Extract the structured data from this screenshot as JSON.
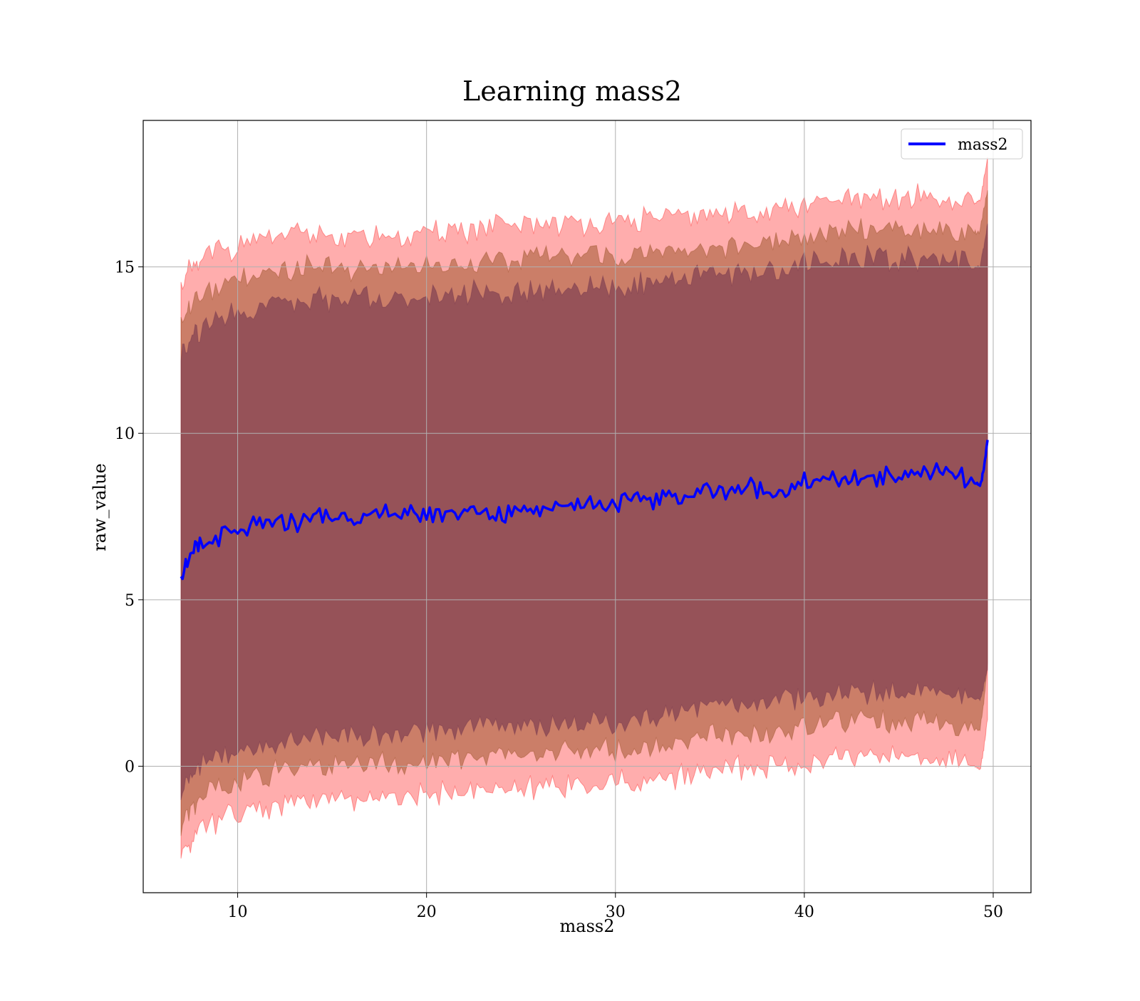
{
  "chart_data": {
    "type": "line",
    "title": "Learning mass2",
    "xlabel": "mass2",
    "ylabel": "raw_value",
    "xlim": [
      5,
      52
    ],
    "ylim": [
      -3.8,
      19.4
    ],
    "xticks": [
      10,
      20,
      30,
      40,
      50
    ],
    "yticks": [
      0,
      5,
      10,
      15
    ],
    "grid": true,
    "legend_position": "top-right",
    "colors": {
      "line": "#0000ff",
      "band_outer": "#ff0000",
      "band_middle": "#8b4513",
      "band_inner": "#6b2e4a"
    },
    "series": [
      {
        "name": "mass2",
        "x": [
          7.0,
          7.5,
          8.0,
          9.0,
          10.0,
          11.0,
          12.0,
          13.0,
          14.0,
          15.0,
          16.0,
          17.0,
          18.0,
          19.0,
          20.0,
          21.0,
          22.0,
          23.0,
          24.0,
          25.0,
          26.0,
          27.0,
          28.0,
          29.0,
          30.0,
          31.0,
          32.0,
          33.0,
          34.0,
          35.0,
          36.0,
          37.0,
          38.0,
          39.0,
          40.0,
          41.0,
          42.0,
          43.0,
          44.0,
          45.0,
          46.0,
          47.0,
          48.0,
          49.0,
          49.3,
          49.5,
          49.7
        ],
        "values": [
          5.8,
          6.3,
          6.6,
          6.9,
          7.0,
          7.2,
          7.3,
          7.3,
          7.5,
          7.5,
          7.5,
          7.5,
          7.6,
          7.5,
          7.6,
          7.6,
          7.7,
          7.6,
          7.6,
          7.7,
          7.8,
          7.8,
          7.9,
          7.9,
          7.9,
          8.0,
          8.0,
          8.1,
          8.2,
          8.3,
          8.3,
          8.4,
          8.3,
          8.3,
          8.5,
          8.6,
          8.6,
          8.7,
          8.7,
          8.7,
          8.8,
          8.8,
          8.7,
          8.5,
          8.4,
          8.9,
          9.8
        ]
      }
    ],
    "bands": [
      {
        "upper": [
          14.4,
          14.9,
          15.1,
          15.5,
          15.6,
          15.8,
          15.9,
          15.9,
          16.0,
          16.0,
          15.9,
          15.9,
          16.0,
          15.9,
          16.0,
          16.1,
          16.1,
          16.1,
          16.2,
          16.2,
          16.3,
          16.3,
          16.3,
          16.3,
          16.3,
          16.4,
          16.5,
          16.5,
          16.5,
          16.6,
          16.6,
          16.7,
          16.7,
          16.7,
          16.8,
          16.9,
          17.0,
          17.0,
          17.0,
          17.0,
          17.1,
          17.1,
          16.9,
          16.9,
          17.0,
          17.6,
          18.3
        ],
        "lower": [
          -2.7,
          -2.2,
          -1.9,
          -1.6,
          -1.5,
          -1.3,
          -1.2,
          -1.2,
          -1.0,
          -1.0,
          -1.0,
          -1.0,
          -0.9,
          -0.9,
          -0.8,
          -0.8,
          -0.7,
          -0.7,
          -0.7,
          -0.7,
          -0.6,
          -0.6,
          -0.6,
          -0.6,
          -0.5,
          -0.5,
          -0.4,
          -0.3,
          -0.2,
          -0.1,
          -0.1,
          0.0,
          0.0,
          0.0,
          0.1,
          0.2,
          0.3,
          0.3,
          0.3,
          0.3,
          0.3,
          0.2,
          0.2,
          0.0,
          -0.1,
          0.5,
          1.4
        ]
      },
      {
        "upper": [
          13.4,
          13.9,
          14.1,
          14.5,
          14.6,
          14.7,
          14.8,
          14.9,
          15.0,
          15.0,
          14.9,
          15.0,
          15.1,
          15.0,
          15.0,
          15.1,
          15.1,
          15.1,
          15.2,
          15.2,
          15.3,
          15.3,
          15.3,
          15.3,
          15.3,
          15.4,
          15.5,
          15.5,
          15.6,
          15.6,
          15.7,
          15.7,
          15.8,
          15.8,
          15.9,
          16.0,
          16.1,
          16.1,
          16.1,
          16.1,
          16.2,
          16.1,
          16.0,
          16.0,
          16.1,
          16.7,
          17.3
        ],
        "lower": [
          -1.8,
          -1.3,
          -1.0,
          -0.6,
          -0.5,
          -0.3,
          -0.2,
          -0.2,
          0.0,
          0.0,
          0.0,
          0.0,
          0.1,
          0.1,
          0.2,
          0.2,
          0.3,
          0.3,
          0.3,
          0.3,
          0.4,
          0.4,
          0.4,
          0.5,
          0.5,
          0.6,
          0.6,
          0.7,
          0.8,
          0.9,
          0.9,
          1.0,
          1.0,
          1.1,
          1.2,
          1.2,
          1.3,
          1.3,
          1.3,
          1.3,
          1.4,
          1.3,
          1.2,
          1.1,
          1.1,
          1.9,
          3.1
        ]
      },
      {
        "upper": [
          12.4,
          12.9,
          13.1,
          13.5,
          13.6,
          13.8,
          13.9,
          13.9,
          14.0,
          14.0,
          14.0,
          14.0,
          14.1,
          14.0,
          14.1,
          14.1,
          14.2,
          14.2,
          14.2,
          14.2,
          14.3,
          14.3,
          14.3,
          14.4,
          14.4,
          14.5,
          14.6,
          14.6,
          14.7,
          14.8,
          14.8,
          14.9,
          14.9,
          14.9,
          15.1,
          15.2,
          15.2,
          15.3,
          15.3,
          15.2,
          15.3,
          15.3,
          15.2,
          15.0,
          15.0,
          15.6,
          16.3
        ],
        "lower": [
          -0.8,
          -0.3,
          0.0,
          0.3,
          0.4,
          0.6,
          0.7,
          0.7,
          0.9,
          0.9,
          0.9,
          0.9,
          1.0,
          1.0,
          1.1,
          1.1,
          1.2,
          1.2,
          1.2,
          1.2,
          1.3,
          1.3,
          1.3,
          1.4,
          1.4,
          1.5,
          1.5,
          1.6,
          1.7,
          1.8,
          1.8,
          1.9,
          1.9,
          2.0,
          2.1,
          2.1,
          2.2,
          2.2,
          2.2,
          2.2,
          2.3,
          2.2,
          2.1,
          2.0,
          2.0,
          2.4,
          2.9
        ]
      }
    ]
  }
}
